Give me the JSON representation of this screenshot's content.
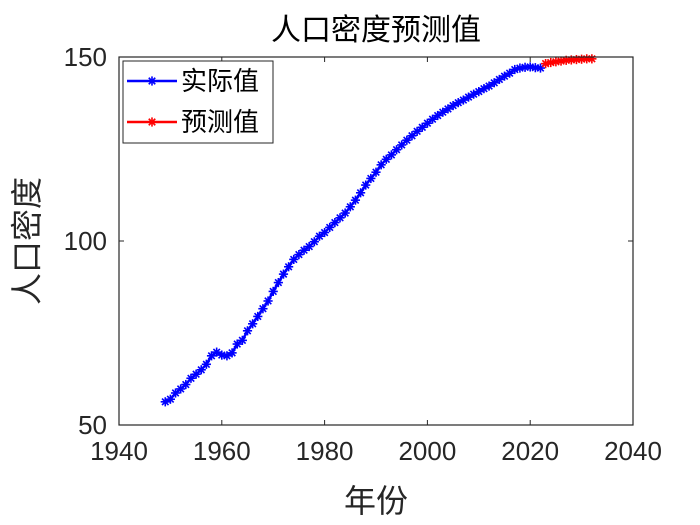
{
  "chart_data": {
    "type": "line",
    "title": "人口密度预测值",
    "xlabel": "年份",
    "ylabel": "人口密度",
    "xlim": [
      1940,
      2040
    ],
    "ylim": [
      50,
      150
    ],
    "xticks": [
      1940,
      1960,
      1980,
      2000,
      2020,
      2040
    ],
    "yticks": [
      50,
      100,
      150
    ],
    "grid": false,
    "legend_position": "top-left",
    "series": [
      {
        "name": "实际值",
        "color": "#0000ff",
        "marker": "asterisk",
        "x": [
          1949,
          1950,
          1951,
          1952,
          1953,
          1954,
          1955,
          1956,
          1957,
          1958,
          1959,
          1960,
          1961,
          1962,
          1963,
          1964,
          1965,
          1966,
          1967,
          1968,
          1969,
          1970,
          1971,
          1972,
          1973,
          1974,
          1975,
          1976,
          1977,
          1978,
          1979,
          1980,
          1981,
          1982,
          1983,
          1984,
          1985,
          1986,
          1987,
          1988,
          1989,
          1990,
          1991,
          1992,
          1993,
          1994,
          1995,
          1996,
          1997,
          1998,
          1999,
          2000,
          2001,
          2002,
          2003,
          2004,
          2005,
          2006,
          2007,
          2008,
          2009,
          2010,
          2011,
          2012,
          2013,
          2014,
          2015,
          2016,
          2017,
          2018,
          2019,
          2020,
          2021,
          2022
        ],
        "y": [
          56.3,
          57.0,
          58.7,
          59.8,
          61.0,
          62.7,
          63.8,
          65.0,
          66.5,
          68.8,
          69.8,
          69.0,
          68.8,
          69.6,
          72.0,
          73.0,
          75.6,
          77.5,
          79.5,
          81.6,
          83.7,
          86.3,
          88.7,
          91.0,
          93.0,
          95.0,
          96.3,
          97.5,
          98.5,
          99.8,
          101.3,
          102.3,
          103.7,
          105.0,
          106.3,
          107.6,
          109.3,
          111.1,
          113.1,
          115.2,
          117.0,
          118.7,
          120.7,
          122.2,
          123.4,
          124.8,
          126.1,
          127.4,
          128.6,
          129.8,
          130.9,
          132.0,
          133.1,
          134.1,
          135.0,
          135.9,
          136.8,
          137.6,
          138.3,
          139.1,
          139.9,
          140.6,
          141.4,
          142.1,
          143.0,
          143.9,
          144.8,
          145.6,
          146.6,
          147.0,
          147.2,
          147.3,
          147.1,
          147.0
        ]
      },
      {
        "name": "预测值",
        "color": "#ff0000",
        "marker": "asterisk",
        "x": [
          2023,
          2024,
          2025,
          2026,
          2027,
          2028,
          2029,
          2030,
          2031,
          2032
        ],
        "y": [
          148.2,
          148.5,
          148.7,
          148.9,
          149.1,
          149.2,
          149.3,
          149.4,
          149.5,
          149.5
        ]
      }
    ]
  }
}
